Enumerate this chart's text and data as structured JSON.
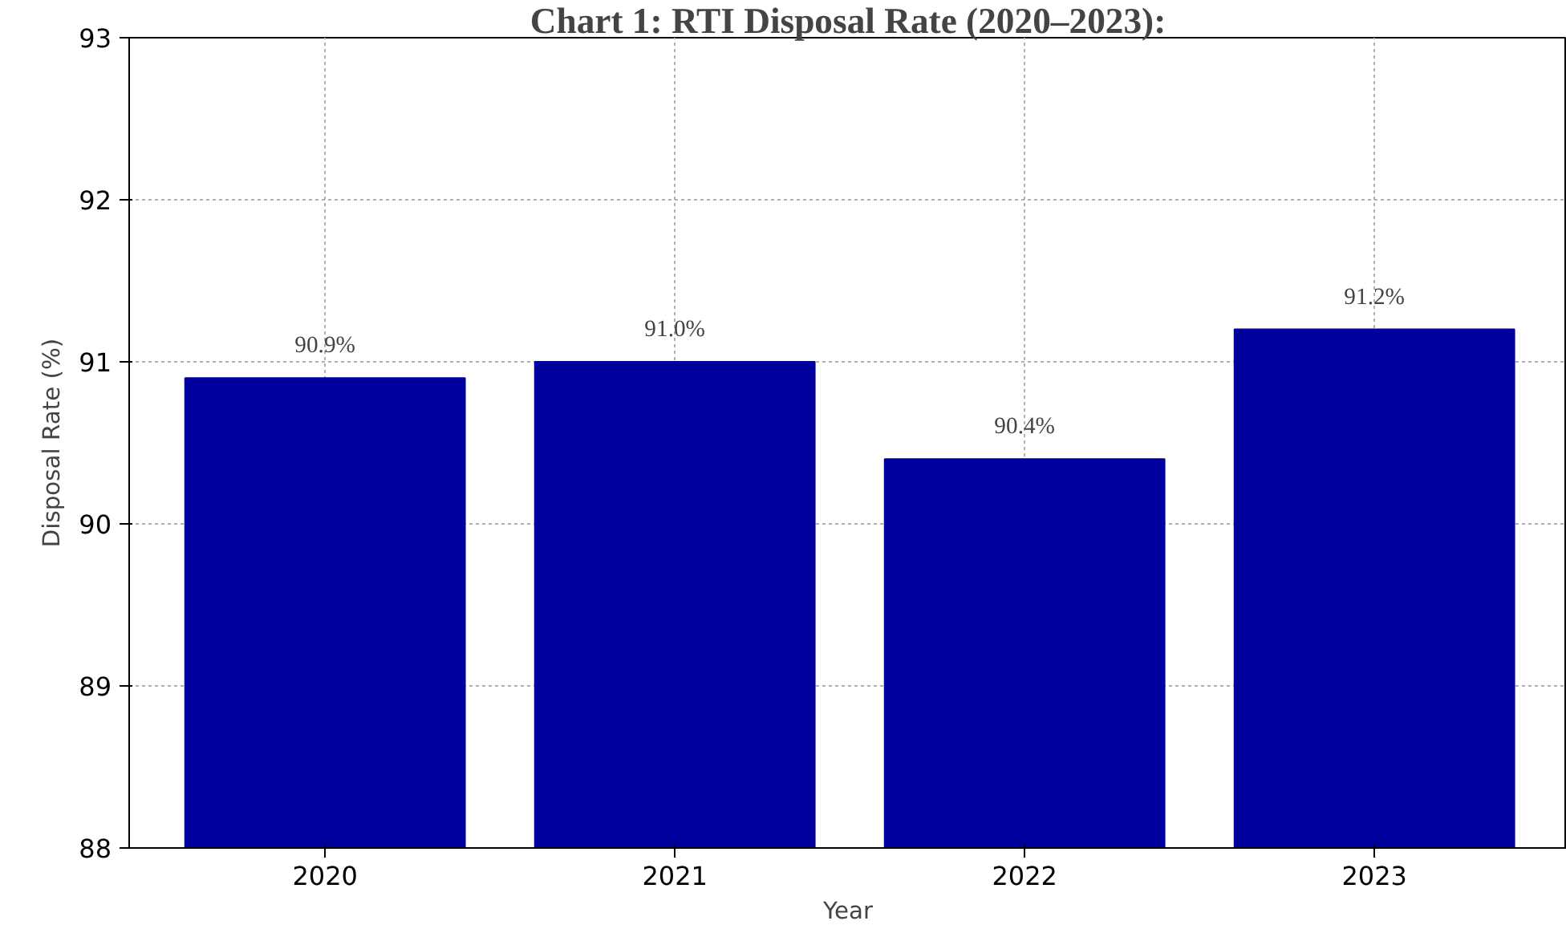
{
  "chart_data": {
    "type": "bar",
    "title": "Chart 1: RTI Disposal Rate (2020–2023):",
    "xlabel": "Year",
    "ylabel": "Disposal Rate (%)",
    "categories": [
      "2020",
      "2021",
      "2022",
      "2023"
    ],
    "values": [
      90.9,
      91.0,
      90.4,
      91.2
    ],
    "value_labels": [
      "90.9%",
      "91.0%",
      "90.4%",
      "91.2%"
    ],
    "color": "#00009c",
    "ylim": [
      88,
      93
    ],
    "yticks": [
      88,
      89,
      90,
      91,
      92,
      93
    ],
    "grid": true
  }
}
